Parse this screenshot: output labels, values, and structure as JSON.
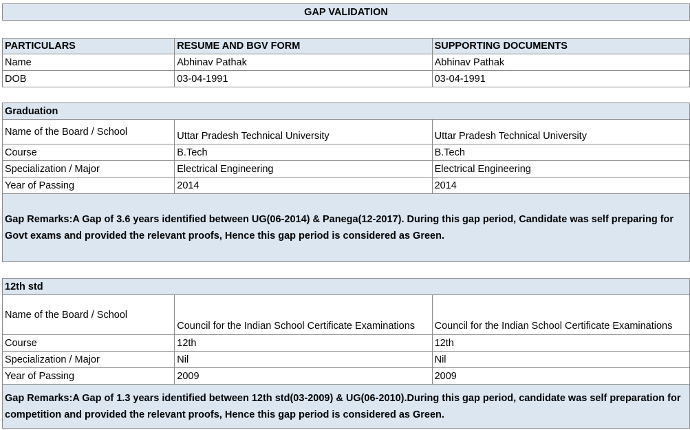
{
  "title": "GAP VALIDATION",
  "header": [
    "PARTICULARS",
    "RESUME AND BGV FORM",
    "SUPPORTING DOCUMENTS"
  ],
  "personal": [
    [
      "Name",
      "Abhinav Pathak",
      "Abhinav Pathak"
    ],
    [
      "DOB",
      "03-04-1991",
      "03-04-1991"
    ]
  ],
  "sections": [
    {
      "title": "Graduation",
      "rows": [
        [
          "Name of the Board / School",
          "Uttar Pradesh Technical University",
          "Uttar Pradesh Technical University"
        ],
        [
          "Course",
          "B.Tech",
          "B.Tech"
        ],
        [
          "Specialization / Major",
          "Electrical Engineering",
          "Electrical Engineering"
        ],
        [
          "Year of Passing",
          "2014",
          "2014"
        ]
      ],
      "remarks": "Gap Remarks:A Gap of 3.6 years identified between UG(06-2014) & Panega(12-2017). During this gap period, Candidate was self preparing for Govt exams and provided the relevant proofs, Hence this gap period is considered as Green."
    },
    {
      "title": "12th std",
      "rows": [
        [
          "Name of the Board / School",
          "Council for the Indian School Certificate Examinations",
          "Council for the Indian School Certificate Examinations"
        ],
        [
          "Course",
          "12th",
          "12th"
        ],
        [
          "Specialization / Major",
          "Nil",
          "Nil"
        ],
        [
          "Year of Passing",
          "2009",
          "2009"
        ]
      ],
      "remarks": "Gap Remarks:A Gap of 1.3 years identified between 12th std(03-2009) & UG(06-2010).During this gap period, candidate was self preparation for competition and provided the relevant proofs, Hence this gap period is considered as Green."
    }
  ]
}
